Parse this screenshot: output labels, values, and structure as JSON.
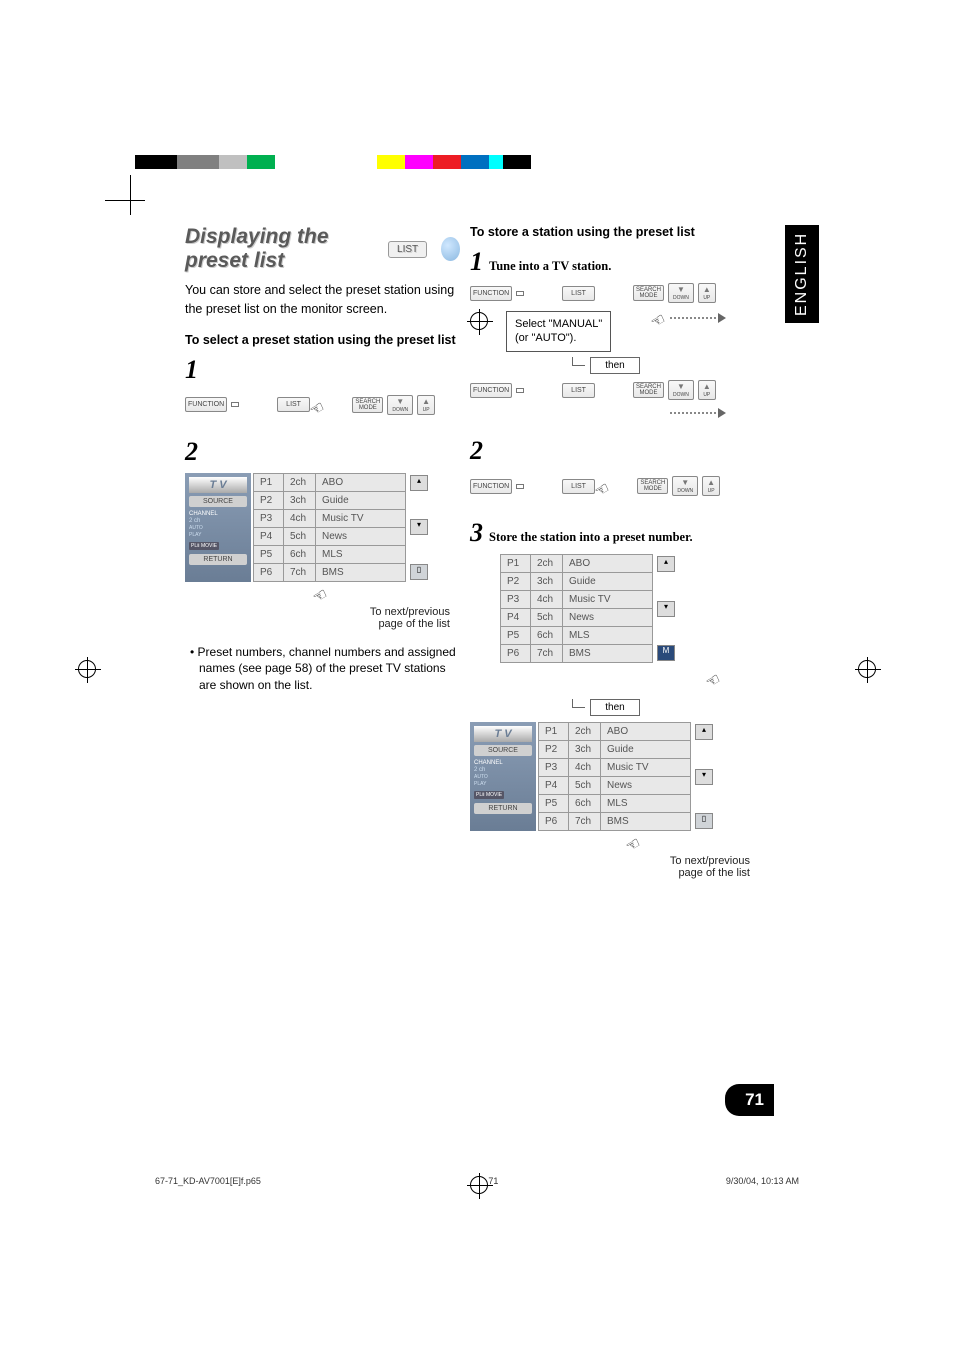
{
  "page": {
    "lang_tab": "ENGLISH",
    "page_number": "71",
    "footer_file": "67-71_KD-AV7001[E]f.p65",
    "footer_page": "71",
    "footer_datetime": "9/30/04, 10:13 AM"
  },
  "colorbar_left": [
    "#000000",
    "#000000",
    "#000000",
    "#808080",
    "#808080",
    "#808080",
    "#c0c0c0",
    "#c0c0c0",
    "#00b050",
    "#00b050",
    "#ffffff",
    "#ffffff",
    "#ffffff"
  ],
  "colorbar_right": [
    "#ffff00",
    "#ffff00",
    "#ff00ff",
    "#ff00ff",
    "#ed1c24",
    "#ed1c24",
    "#0070c0",
    "#0070c0",
    "#00ffff",
    "#000000",
    "#000000"
  ],
  "left": {
    "title": "Displaying the preset list",
    "title_chip": "LIST",
    "intro": "You can store and select the preset station using the preset list on the monitor screen.",
    "subheading": "To select a preset station using the preset list",
    "step1": "1",
    "step2": "2",
    "caption_nextprev": "To next/previous",
    "caption_pageof": "page of the list",
    "bullet": "• Preset numbers, channel numbers and assigned names (see page 58) of the preset TV stations are shown on the list."
  },
  "right": {
    "heading": "To store a station using the preset list",
    "step1_num": "1",
    "step1_text": "Tune into a TV station.",
    "speech_line1": "Select \"MANUAL\"",
    "speech_line2": "(or \"AUTO\").",
    "then": "then",
    "step2_num": "2",
    "step3_num": "3",
    "step3_text": "Store the station into a preset number.",
    "caption_nextprev": "To next/previous",
    "caption_pageof": "page of the list"
  },
  "buttons": {
    "function": "FUNCTION",
    "list": "LIST",
    "search_mode_l1": "SEARCH",
    "search_mode_l2": "MODE",
    "down": "DOWN",
    "up": "UP"
  },
  "tv_menu": {
    "title": "T V",
    "source": "SOURCE",
    "channel": "CHANNEL",
    "channel_val": "2 ch",
    "auto": "AUTO",
    "play": "PLAY",
    "dolby": "PLⅡ MOVIE",
    "return": "RETURN"
  },
  "presets": [
    {
      "p": "P1",
      "ch": "2ch",
      "name": "ABO"
    },
    {
      "p": "P2",
      "ch": "3ch",
      "name": "Guide"
    },
    {
      "p": "P3",
      "ch": "4ch",
      "name": "Music TV"
    },
    {
      "p": "P4",
      "ch": "5ch",
      "name": "News"
    },
    {
      "p": "P5",
      "ch": "6ch",
      "name": "MLS"
    },
    {
      "p": "P6",
      "ch": "7ch",
      "name": "BMS"
    }
  ]
}
